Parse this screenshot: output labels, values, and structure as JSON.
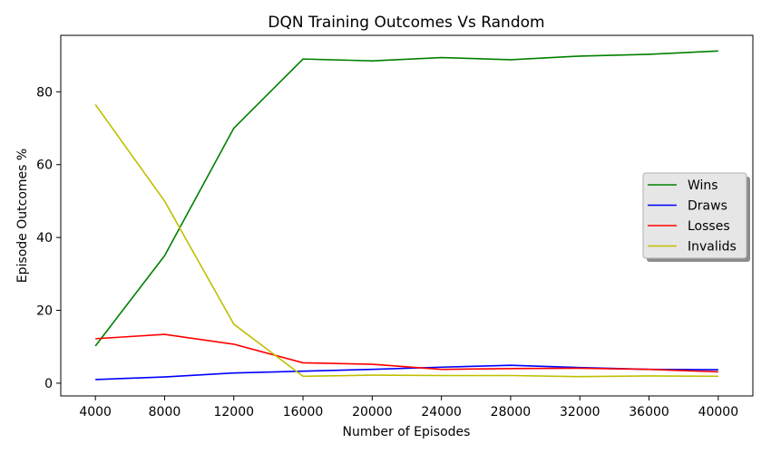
{
  "chart_data": {
    "type": "line",
    "title": "DQN Training Outcomes Vs Random",
    "xlabel": "Number of Episodes",
    "ylabel": "Episode Outcomes %",
    "x": [
      4000,
      8000,
      12000,
      16000,
      20000,
      24000,
      28000,
      32000,
      36000,
      40000
    ],
    "xticks": [
      "4000",
      "8000",
      "12000",
      "16000",
      "20000",
      "24000",
      "28000",
      "32000",
      "36000",
      "40000"
    ],
    "yticks": [
      0,
      20,
      40,
      60,
      80
    ],
    "xlim": [
      2000,
      42000
    ],
    "ylim": [
      -3.5,
      95.5
    ],
    "grid": false,
    "legend_position": "center-right",
    "series": [
      {
        "name": "Wins",
        "color": "#008000",
        "values": [
          10.2,
          35.0,
          70.0,
          89.0,
          88.5,
          89.4,
          88.8,
          89.8,
          90.3,
          91.2
        ]
      },
      {
        "name": "Draws",
        "color": "#0000ff",
        "values": [
          1.0,
          1.7,
          2.8,
          3.3,
          3.8,
          4.4,
          4.9,
          4.3,
          3.8,
          3.7
        ]
      },
      {
        "name": "Losses",
        "color": "#ff0000",
        "values": [
          12.2,
          13.4,
          10.7,
          5.6,
          5.2,
          3.8,
          4.0,
          4.1,
          3.8,
          3.1
        ]
      },
      {
        "name": "Invalids",
        "color": "#bfbf00",
        "values": [
          76.5,
          50.0,
          16.2,
          1.9,
          2.2,
          2.1,
          2.1,
          1.8,
          2.0,
          1.9
        ]
      }
    ]
  }
}
